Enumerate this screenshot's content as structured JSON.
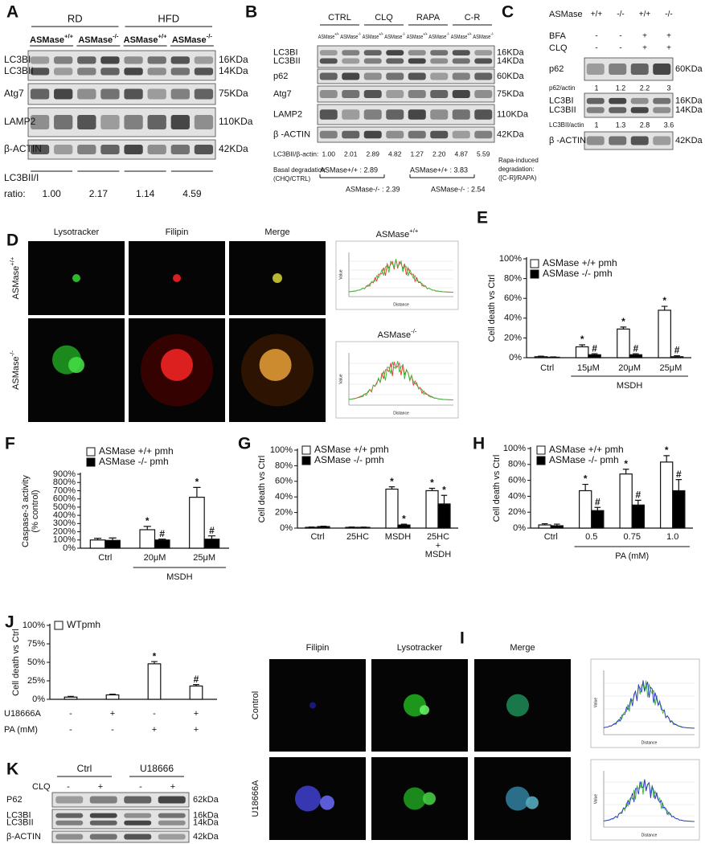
{
  "A": {
    "letter": "A",
    "groups": [
      "RD",
      "HFD"
    ],
    "genotypes": [
      {
        "name": "ASMase",
        "sup": "+/+"
      },
      {
        "name": "ASMase",
        "sup": "-/-"
      },
      {
        "name": "ASMase",
        "sup": "+/+"
      },
      {
        "name": "ASMase",
        "sup": "-/-"
      }
    ],
    "rows": [
      {
        "labels": [
          "LC3BI",
          "LC3BII"
        ],
        "sizes": [
          "16KDa",
          "14KDa"
        ]
      },
      {
        "labels": [
          "Atg7"
        ],
        "sizes": [
          "75KDa"
        ]
      },
      {
        "labels": [
          "LAMP2"
        ],
        "sizes": [
          "110KDa"
        ]
      },
      {
        "labels": [
          "β-ACTIN"
        ],
        "sizes": [
          "42KDa"
        ]
      }
    ],
    "ratio_label": [
      "LC3BII/I",
      "ratio:"
    ],
    "ratios": [
      "1.00",
      "2.17",
      "1.14",
      "4.59"
    ]
  },
  "B": {
    "letter": "B",
    "groups": [
      "CTRL",
      "CLQ",
      "RAPA",
      "C-R"
    ],
    "genotypes": [
      {
        "name": "ASMase",
        "sup": "+/+"
      },
      {
        "name": "ASMase",
        "sup": "-/-"
      }
    ],
    "rows": [
      {
        "labels": [
          "LC3BI",
          "LC3BII"
        ],
        "sizes": [
          "16KDa",
          "14KDa"
        ]
      },
      {
        "labels": [
          "p62"
        ],
        "sizes": [
          "60KDa"
        ]
      },
      {
        "labels": [
          "Atg7"
        ],
        "sizes": [
          "75KDa"
        ]
      },
      {
        "labels": [
          "LAMP2"
        ],
        "sizes": [
          "110KDa"
        ]
      },
      {
        "labels": [
          "β -ACTIN"
        ],
        "sizes": [
          "42KDa"
        ]
      }
    ],
    "ratio_label": "LC3BII/β-actin:",
    "ratios": [
      "1.00",
      "2.01",
      "2.89",
      "4.82",
      "1.27",
      "2.20",
      "4.87",
      "5.59"
    ],
    "basal_label": [
      "Basal degradation:",
      "(CHQ/CTRL)"
    ],
    "basal": [
      "ASMase+/+ : 2.89",
      "ASMase-/- : 2.39"
    ],
    "rapa_label": [
      "Rapa-induced",
      "degradation:",
      "([C-R]/RAPA)"
    ],
    "rapa": [
      "ASMase+/+ : 3.83",
      "ASMase-/- : 2.54"
    ]
  },
  "C": {
    "letter": "C",
    "conditions": [
      {
        "label": "ASMase",
        "values": [
          "+/+",
          "-/-",
          "+/+",
          "-/-"
        ]
      },
      {
        "label": "BFA",
        "values": [
          "-",
          "-",
          "+",
          "+"
        ]
      },
      {
        "label": "CLQ",
        "values": [
          "-",
          "-",
          "+",
          "+"
        ]
      }
    ],
    "rows": [
      {
        "labels": [
          "p62"
        ],
        "sizes": [
          "60KDa"
        ]
      },
      {
        "labels": [
          "LC3BI",
          "LC3BII"
        ],
        "sizes": [
          "16KDa",
          "14KDa"
        ]
      },
      {
        "labels": [
          "β -ACTIN"
        ],
        "sizes": [
          "42KDa"
        ]
      }
    ],
    "quant": [
      {
        "label": "p62/actin",
        "values": [
          "1",
          "1.2",
          "2.2",
          "3"
        ]
      },
      {
        "label": "LC3BII/actin",
        "values": [
          "1",
          "1.3",
          "2.8",
          "3.6"
        ]
      }
    ]
  },
  "D": {
    "letter": "D",
    "columns": [
      "Lysotracker",
      "Filipin",
      "Merge"
    ],
    "rows": [
      {
        "name": "ASMase",
        "sup": "+/+"
      },
      {
        "name": "ASMase",
        "sup": "-/-"
      }
    ],
    "plot_axes": [
      "Value",
      "Distance"
    ]
  },
  "I": {
    "letter": "I",
    "columns": [
      "Filipin",
      "Lysotracker",
      "Merge"
    ],
    "rows": [
      "Control",
      "U18666A"
    ],
    "plot_axes": [
      "Value",
      "Distance"
    ]
  },
  "K": {
    "letter": "K",
    "groups": [
      "Ctrl",
      "U18666"
    ],
    "conditions": [
      {
        "label": "CLQ",
        "values": [
          "-",
          "+",
          "-",
          "+"
        ]
      }
    ],
    "rows": [
      {
        "labels": [
          "P62"
        ],
        "sizes": [
          "62kDa"
        ]
      },
      {
        "labels": [
          "LC3BI",
          "LC3BII"
        ],
        "sizes": [
          "16kDa",
          "14kDa"
        ]
      },
      {
        "labels": [
          "β-ACTIN"
        ],
        "sizes": [
          "42kDa"
        ]
      }
    ]
  },
  "chart_data": [
    {
      "type": "bar",
      "letter": "E",
      "ylabel": [
        "Cell death vs Ctrl"
      ],
      "ylim": [
        0,
        100
      ],
      "yticks": [
        {
          "value": 0,
          "label": "0%"
        },
        {
          "value": 20,
          "label": "20%"
        },
        {
          "value": 40,
          "label": "40%"
        },
        {
          "value": 60,
          "label": "60%"
        },
        {
          "value": 80,
          "label": "80%"
        },
        {
          "value": 100,
          "label": "100%"
        }
      ],
      "categories": [
        "Ctrl",
        "15μM",
        "20μM",
        "25μM"
      ],
      "group_label": "MSDH",
      "series": [
        {
          "name": "ASMase +/+ pmh",
          "color": "#ffffff",
          "values": [
            1,
            11,
            29,
            48
          ],
          "errors": [
            0.5,
            2,
            2,
            4
          ],
          "markers": [
            null,
            "*",
            "*",
            "*"
          ]
        },
        {
          "name": "ASMase -/-  pmh",
          "color": "#000000",
          "values": [
            0.5,
            3,
            3,
            1
          ],
          "errors": [
            0.3,
            1,
            1,
            1
          ],
          "markers": [
            null,
            "#",
            "#",
            "#"
          ]
        }
      ]
    },
    {
      "type": "bar",
      "letter": "F",
      "ylabel": [
        "Caspase-3 activity",
        "(% control)"
      ],
      "ylim": [
        0,
        900
      ],
      "yticks": [
        {
          "value": 0,
          "label": "0%"
        },
        {
          "value": 100,
          "label": "100%"
        },
        {
          "value": 200,
          "label": "200%"
        },
        {
          "value": 300,
          "label": "300%"
        },
        {
          "value": 400,
          "label": "400%"
        },
        {
          "value": 500,
          "label": "500%"
        },
        {
          "value": 600,
          "label": "600%"
        },
        {
          "value": 700,
          "label": "700%"
        },
        {
          "value": 800,
          "label": "800%"
        },
        {
          "value": 900,
          "label": "900%"
        }
      ],
      "categories": [
        "Ctrl",
        "20μM",
        "25μM"
      ],
      "group_label": "MSDH",
      "series": [
        {
          "name": "ASMase +/+ pmh",
          "color": "#ffffff",
          "values": [
            100,
            225,
            620
          ],
          "errors": [
            20,
            40,
            120
          ],
          "markers": [
            null,
            "*",
            "*"
          ]
        },
        {
          "name": "ASMase -/-  pmh",
          "color": "#000000",
          "values": [
            95,
            100,
            110
          ],
          "errors": [
            30,
            10,
            40
          ],
          "markers": [
            null,
            "#",
            "#"
          ]
        }
      ]
    },
    {
      "type": "bar",
      "letter": "G",
      "ylabel": [
        "Cell death vs Ctrl"
      ],
      "ylim": [
        0,
        100
      ],
      "yticks": [
        {
          "value": 0,
          "label": "0%"
        },
        {
          "value": 20,
          "label": "20%"
        },
        {
          "value": 40,
          "label": "40%"
        },
        {
          "value": 60,
          "label": "60%"
        },
        {
          "value": 80,
          "label": "80%"
        },
        {
          "value": 100,
          "label": "100%"
        }
      ],
      "categories": [
        "Ctrl",
        "25HC",
        "MSDH",
        [
          "25HC",
          "+",
          "MSDH"
        ]
      ],
      "series": [
        {
          "name": "ASMase +/+ pmh",
          "color": "#ffffff",
          "values": [
            1,
            1,
            50,
            48
          ],
          "errors": [
            0.5,
            0.5,
            3,
            3
          ],
          "markers": [
            null,
            null,
            "*",
            "*"
          ]
        },
        {
          "name": "ASMase -/-  pmh",
          "color": "#000000",
          "values": [
            2,
            1,
            4,
            31
          ],
          "errors": [
            0.5,
            0.3,
            1,
            11
          ],
          "markers": [
            null,
            null,
            "*",
            "*"
          ]
        }
      ]
    },
    {
      "type": "bar",
      "letter": "H",
      "ylabel": [
        "Cell death vs Ctrl"
      ],
      "ylim": [
        0,
        100
      ],
      "yticks": [
        {
          "value": 0,
          "label": "0%"
        },
        {
          "value": 20,
          "label": "20%"
        },
        {
          "value": 40,
          "label": "40%"
        },
        {
          "value": 60,
          "label": "60%"
        },
        {
          "value": 80,
          "label": "80%"
        },
        {
          "value": 100,
          "label": "100%"
        }
      ],
      "categories": [
        "Ctrl",
        "0.5",
        "0.75",
        "1.0"
      ],
      "group_label": "PA (mM)",
      "series": [
        {
          "name": "ASMase +/+ pmh",
          "color": "#ffffff",
          "values": [
            4,
            47,
            68,
            83
          ],
          "errors": [
            1.5,
            8,
            6,
            8
          ],
          "markers": [
            null,
            "*",
            "*",
            "*"
          ]
        },
        {
          "name": "ASMase -/-  pmh",
          "color": "#000000",
          "values": [
            3,
            22,
            29,
            47
          ],
          "errors": [
            2,
            4,
            6,
            14
          ],
          "markers": [
            null,
            "#",
            "#",
            "#"
          ]
        }
      ]
    },
    {
      "type": "bar",
      "letter": "J",
      "ylabel": [
        "Cell death vs Ctrl"
      ],
      "ylim": [
        0,
        100
      ],
      "yticks": [
        {
          "value": 0,
          "label": "0%"
        },
        {
          "value": 25,
          "label": "25%"
        },
        {
          "value": 50,
          "label": "50%"
        },
        {
          "value": 75,
          "label": "75%"
        },
        {
          "value": 100,
          "label": "100%"
        }
      ],
      "conditions": [
        {
          "label": "U18666A",
          "values": [
            "-",
            "+",
            "-",
            "+"
          ]
        },
        {
          "label": "PA (mM)",
          "values": [
            "-",
            "-",
            "+",
            "+"
          ]
        }
      ],
      "series": [
        {
          "name": "WTpmh",
          "color": "#ffffff",
          "values": [
            3,
            6,
            48,
            18
          ],
          "errors": [
            1,
            1,
            3,
            2
          ],
          "markers": [
            null,
            null,
            "*",
            "#"
          ]
        }
      ]
    }
  ]
}
